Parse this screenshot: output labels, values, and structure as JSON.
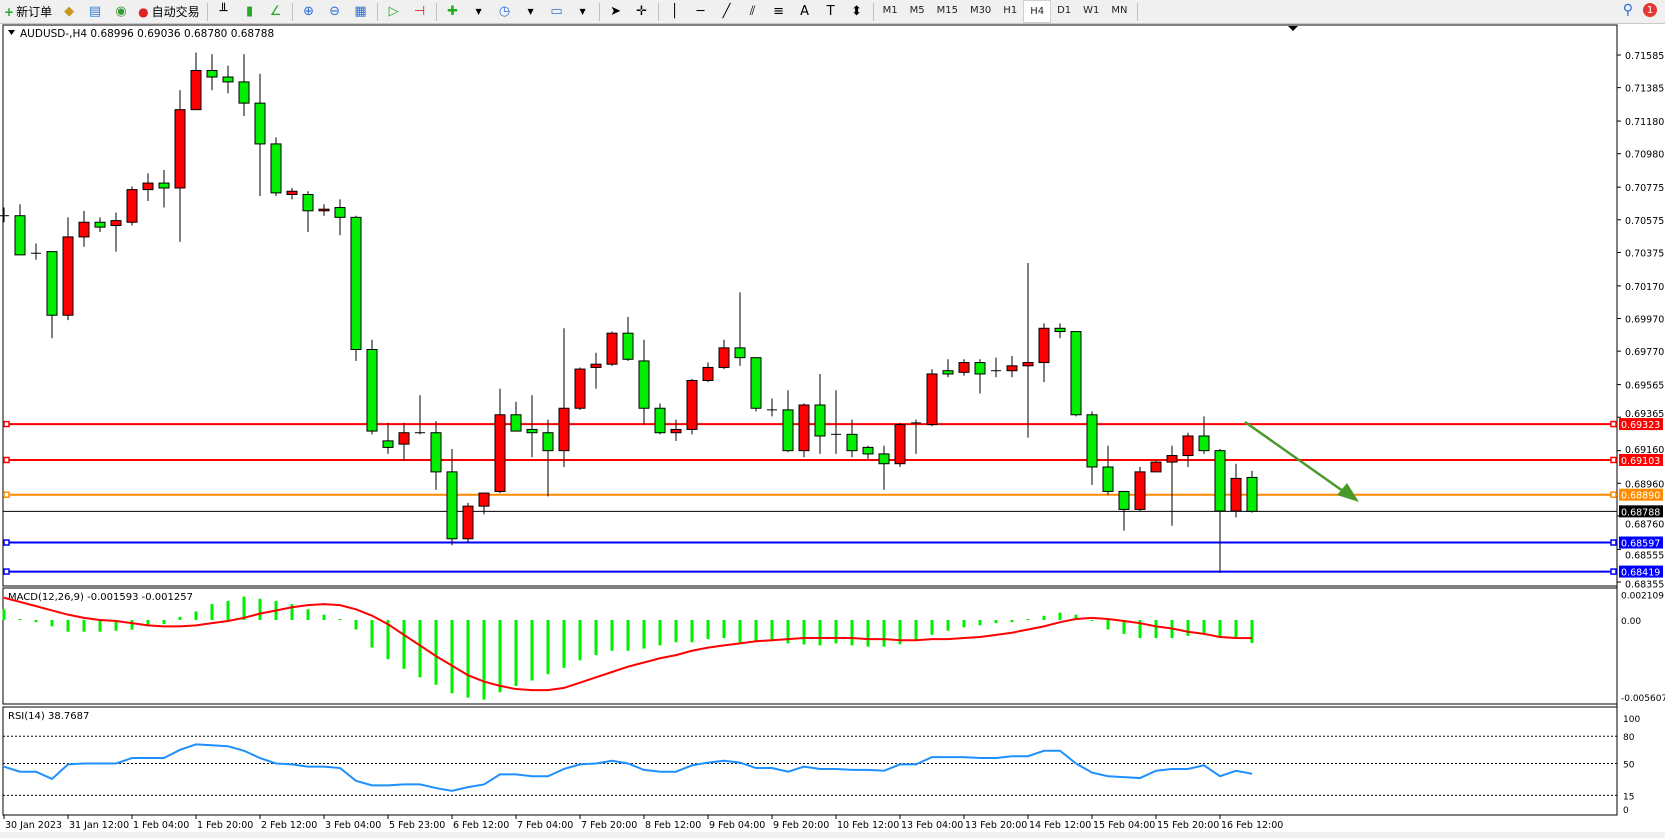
{
  "toolbar": {
    "new_order": "新订单",
    "auto_trading": "自动交易",
    "periods": [
      "M1",
      "M5",
      "M15",
      "M30",
      "H1",
      "H4",
      "D1",
      "W1",
      "MN"
    ],
    "active_period": "H4",
    "notification_count": "1"
  },
  "chart_data": [
    {
      "type": "candlestick",
      "title": "AUDUSD-,H4  0.68996 0.69036 0.68780 0.68788",
      "symbol": "AUDUSD-",
      "timeframe": "H4",
      "up_color": "#ff0000",
      "down_color": "#00ee00",
      "ylim": [
        0.68355,
        0.71585
      ],
      "price_ticks": [
        "0.71585",
        "0.71385",
        "0.71180",
        "0.70980",
        "0.70775",
        "0.70575",
        "0.70375",
        "0.70170",
        "0.69970",
        "0.69770",
        "0.69565",
        "0.69365",
        "0.69160",
        "0.68960",
        "0.68760",
        "0.68555",
        "0.68355"
      ],
      "time_labels": [
        "30 Jan 2023",
        "31 Jan 12:00",
        "1 Feb 04:00",
        "1 Feb 20:00",
        "2 Feb 12:00",
        "3 Feb 04:00",
        "5 Feb 23:00",
        "6 Feb 12:00",
        "7 Feb 04:00",
        "7 Feb 20:00",
        "8 Feb 12:00",
        "9 Feb 04:00",
        "9 Feb 20:00",
        "10 Feb 12:00",
        "13 Feb 04:00",
        "13 Feb 20:00",
        "14 Feb 12:00",
        "15 Feb 04:00",
        "15 Feb 20:00",
        "16 Feb 12:00"
      ],
      "ohlc": [
        [
          0.706,
          0.7065,
          0.7056,
          0.706
        ],
        [
          0.706,
          0.7067,
          0.7036,
          0.7036
        ],
        [
          0.7037,
          0.7043,
          0.7033,
          0.7037
        ],
        [
          0.7038,
          0.7038,
          0.6985,
          0.6999
        ],
        [
          0.6999,
          0.7059,
          0.6996,
          0.7047
        ],
        [
          0.7047,
          0.7063,
          0.7041,
          0.7056
        ],
        [
          0.7056,
          0.7059,
          0.705,
          0.7053
        ],
        [
          0.7054,
          0.7062,
          0.7038,
          0.7057
        ],
        [
          0.7056,
          0.7078,
          0.7054,
          0.7076
        ],
        [
          0.7076,
          0.7086,
          0.7069,
          0.708
        ],
        [
          0.708,
          0.7088,
          0.7065,
          0.7077
        ],
        [
          0.7077,
          0.7137,
          0.7044,
          0.7125
        ],
        [
          0.7125,
          0.716,
          0.7125,
          0.7149
        ],
        [
          0.7149,
          0.7159,
          0.7137,
          0.7145
        ],
        [
          0.7145,
          0.7152,
          0.7135,
          0.7142
        ],
        [
          0.7142,
          0.7159,
          0.7121,
          0.7129
        ],
        [
          0.7129,
          0.7147,
          0.7072,
          0.7104
        ],
        [
          0.7104,
          0.7108,
          0.7072,
          0.7074
        ],
        [
          0.7073,
          0.7077,
          0.707,
          0.7075
        ],
        [
          0.7073,
          0.7075,
          0.705,
          0.7063
        ],
        [
          0.7063,
          0.7067,
          0.706,
          0.7064
        ],
        [
          0.7065,
          0.707,
          0.7048,
          0.7059
        ],
        [
          0.7059,
          0.706,
          0.6971,
          0.6978
        ],
        [
          0.6978,
          0.6984,
          0.6926,
          0.6928
        ],
        [
          0.6922,
          0.6933,
          0.6914,
          0.6918
        ],
        [
          0.692,
          0.6933,
          0.691,
          0.6927
        ],
        [
          0.6927,
          0.695,
          0.6926,
          0.6927
        ],
        [
          0.6927,
          0.6934,
          0.6892,
          0.6903
        ],
        [
          0.6903,
          0.6917,
          0.6858,
          0.6862
        ],
        [
          0.6862,
          0.6884,
          0.686,
          0.6882
        ],
        [
          0.6882,
          0.689,
          0.6877,
          0.689
        ],
        [
          0.6891,
          0.6954,
          0.689,
          0.6938
        ],
        [
          0.6938,
          0.6946,
          0.6928,
          0.6928
        ],
        [
          0.6929,
          0.695,
          0.6912,
          0.6927
        ],
        [
          0.6927,
          0.6935,
          0.6888,
          0.6916
        ],
        [
          0.6916,
          0.6991,
          0.6906,
          0.6942
        ],
        [
          0.6942,
          0.6967,
          0.6941,
          0.6966
        ],
        [
          0.6967,
          0.6976,
          0.6954,
          0.6969
        ],
        [
          0.6969,
          0.6989,
          0.6968,
          0.6988
        ],
        [
          0.6988,
          0.6998,
          0.6971,
          0.6972
        ],
        [
          0.6971,
          0.6984,
          0.6932,
          0.6942
        ],
        [
          0.6942,
          0.6945,
          0.6926,
          0.6927
        ],
        [
          0.6927,
          0.6935,
          0.6922,
          0.6929
        ],
        [
          0.6929,
          0.696,
          0.6926,
          0.6959
        ],
        [
          0.6959,
          0.697,
          0.6958,
          0.6967
        ],
        [
          0.6967,
          0.6984,
          0.6966,
          0.6979
        ],
        [
          0.6979,
          0.7013,
          0.6968,
          0.6973
        ],
        [
          0.6973,
          0.6973,
          0.694,
          0.6942
        ],
        [
          0.6941,
          0.6948,
          0.6937,
          0.6941
        ],
        [
          0.6941,
          0.6953,
          0.6915,
          0.6916
        ],
        [
          0.6916,
          0.6945,
          0.6912,
          0.6944
        ],
        [
          0.6944,
          0.6963,
          0.6914,
          0.6925
        ],
        [
          0.6926,
          0.6953,
          0.6914,
          0.6926
        ],
        [
          0.6926,
          0.6935,
          0.6912,
          0.6916
        ],
        [
          0.6918,
          0.6919,
          0.6911,
          0.6914
        ],
        [
          0.6914,
          0.6919,
          0.6892,
          0.6908
        ],
        [
          0.6908,
          0.6933,
          0.6906,
          0.6932
        ],
        [
          0.6933,
          0.6935,
          0.6914,
          0.6933
        ],
        [
          0.6932,
          0.6966,
          0.6931,
          0.6963
        ],
        [
          0.6965,
          0.6972,
          0.6961,
          0.6963
        ],
        [
          0.6964,
          0.6972,
          0.6962,
          0.697
        ],
        [
          0.697,
          0.6972,
          0.6951,
          0.6963
        ],
        [
          0.6965,
          0.6973,
          0.6961,
          0.6965
        ],
        [
          0.6965,
          0.6974,
          0.6961,
          0.6968
        ],
        [
          0.6968,
          0.7031,
          0.6924,
          0.697
        ],
        [
          0.697,
          0.6994,
          0.6958,
          0.6991
        ],
        [
          0.6991,
          0.6994,
          0.6985,
          0.6989
        ],
        [
          0.6989,
          0.6989,
          0.6937,
          0.6938
        ],
        [
          0.6938,
          0.694,
          0.6895,
          0.6906
        ],
        [
          0.6906,
          0.6919,
          0.6889,
          0.6891
        ],
        [
          0.6891,
          0.6891,
          0.6867,
          0.688
        ],
        [
          0.688,
          0.6906,
          0.6879,
          0.6903
        ],
        [
          0.6903,
          0.691,
          0.6903,
          0.6909
        ],
        [
          0.6909,
          0.6919,
          0.687,
          0.6913
        ],
        [
          0.6913,
          0.6927,
          0.6906,
          0.6925
        ],
        [
          0.6925,
          0.6937,
          0.6914,
          0.6916
        ],
        [
          0.6916,
          0.6917,
          0.6841,
          0.6879
        ],
        [
          0.6879,
          0.6908,
          0.6875,
          0.6899
        ],
        [
          0.68996,
          0.69036,
          0.6878,
          0.68788
        ]
      ],
      "horizontal_lines": [
        {
          "price": "0.69323",
          "color": "#ff0000"
        },
        {
          "price": "0.69103",
          "color": "#ff0000"
        },
        {
          "price": "0.68890",
          "color": "#ff8c00"
        },
        {
          "price": "0.68788",
          "color": "#000000",
          "bid": true
        },
        {
          "price": "0.68597",
          "color": "#0000ff"
        },
        {
          "price": "0.68419",
          "color": "#0000ff"
        }
      ],
      "arrow_color": "#4a9a2a"
    },
    {
      "type": "bar+line",
      "title": "MACD(12,26,9) -0.001593 -0.001257",
      "ticks": [
        "0.002109",
        "0.00",
        "-0.005607"
      ],
      "ylim": [
        -0.005607,
        0.002109
      ],
      "histogram_color": "#00ee00",
      "signal_color": "#ff0000",
      "histogram": [
        0.00074,
        7e-05,
        -0.00015,
        -0.00044,
        -0.00081,
        -0.00081,
        -0.00081,
        -0.00074,
        -0.00066,
        -0.00044,
        -0.00029,
        0.00022,
        0.00059,
        0.0011,
        0.00132,
        0.00162,
        0.00147,
        0.00132,
        0.0011,
        0.00074,
        0.00037,
        7e-05,
        -0.00066,
        -0.00191,
        -0.00272,
        -0.00338,
        -0.00397,
        -0.00448,
        -0.00507,
        -0.00537,
        -0.00551,
        -0.005,
        -0.00456,
        -0.00419,
        -0.00375,
        -0.00331,
        -0.00279,
        -0.00243,
        -0.00213,
        -0.00213,
        -0.00198,
        -0.00176,
        -0.00154,
        -0.00154,
        -0.00132,
        -0.00125,
        -0.00154,
        -0.00154,
        -0.00147,
        -0.00162,
        -0.00169,
        -0.00176,
        -0.00162,
        -0.00176,
        -0.00184,
        -0.00184,
        -0.00169,
        -0.00147,
        -0.00103,
        -0.00074,
        -0.00051,
        -0.00037,
        -0.00022,
        -0.00015,
        7e-05,
        0.00029,
        0.00051,
        0.00037,
        -7e-05,
        -0.00066,
        -0.00096,
        -0.00125,
        -0.00125,
        -0.00125,
        -0.0011,
        -0.00103,
        -0.00118,
        -0.00118,
        -0.001593
      ],
      "signal": [
        0.00154,
        0.00125,
        0.00096,
        0.00066,
        0.00037,
        0.00015,
        0.0,
        -7e-05,
        -0.00022,
        -0.00037,
        -0.00044,
        -0.00044,
        -0.00037,
        -0.00022,
        -7e-05,
        0.00015,
        0.00044,
        0.00066,
        0.00088,
        0.00103,
        0.0011,
        0.00103,
        0.00074,
        0.0003,
        -0.00029,
        -0.00103,
        -0.00176,
        -0.0025,
        -0.00316,
        -0.00382,
        -0.00426,
        -0.00456,
        -0.00478,
        -0.00485,
        -0.00485,
        -0.0047,
        -0.00434,
        -0.00397,
        -0.0036,
        -0.00323,
        -0.00294,
        -0.00265,
        -0.00243,
        -0.00213,
        -0.00191,
        -0.00176,
        -0.00162,
        -0.00147,
        -0.0014,
        -0.00132,
        -0.00125,
        -0.00125,
        -0.00125,
        -0.00125,
        -0.00132,
        -0.00132,
        -0.0014,
        -0.0014,
        -0.00132,
        -0.00132,
        -0.00125,
        -0.00118,
        -0.00103,
        -0.00088,
        -0.00066,
        -0.00044,
        -0.00015,
        7e-05,
        0.00015,
        7e-05,
        -7e-05,
        -0.00022,
        -0.00044,
        -0.00059,
        -0.00081,
        -0.00096,
        -0.00118,
        -0.00125,
        -0.001257
      ]
    },
    {
      "type": "line",
      "title": "RSI(14) 38.7687",
      "ticks": [
        "100",
        "80",
        "50",
        "15",
        "0"
      ],
      "levels": [
        80,
        50,
        15
      ],
      "ylim": [
        0,
        100
      ],
      "color": "#1e90ff",
      "values": [
        46.5,
        41,
        41,
        33,
        49,
        50,
        50,
        50,
        56,
        56,
        56,
        65,
        71,
        70,
        69,
        64,
        56,
        50,
        49,
        46.5,
        46.5,
        45,
        31,
        26,
        26,
        27,
        27,
        23,
        20,
        24,
        27,
        38,
        38,
        36,
        36,
        44,
        49,
        50,
        53,
        50,
        43,
        41,
        41,
        48,
        51,
        53,
        51,
        45,
        45,
        41,
        46.5,
        44,
        44,
        43,
        43,
        42,
        49,
        49,
        57,
        57,
        57,
        56,
        56,
        58,
        58,
        64,
        64,
        50,
        40,
        36,
        35,
        34,
        42,
        44,
        44,
        48,
        36,
        42,
        38.77
      ]
    }
  ]
}
